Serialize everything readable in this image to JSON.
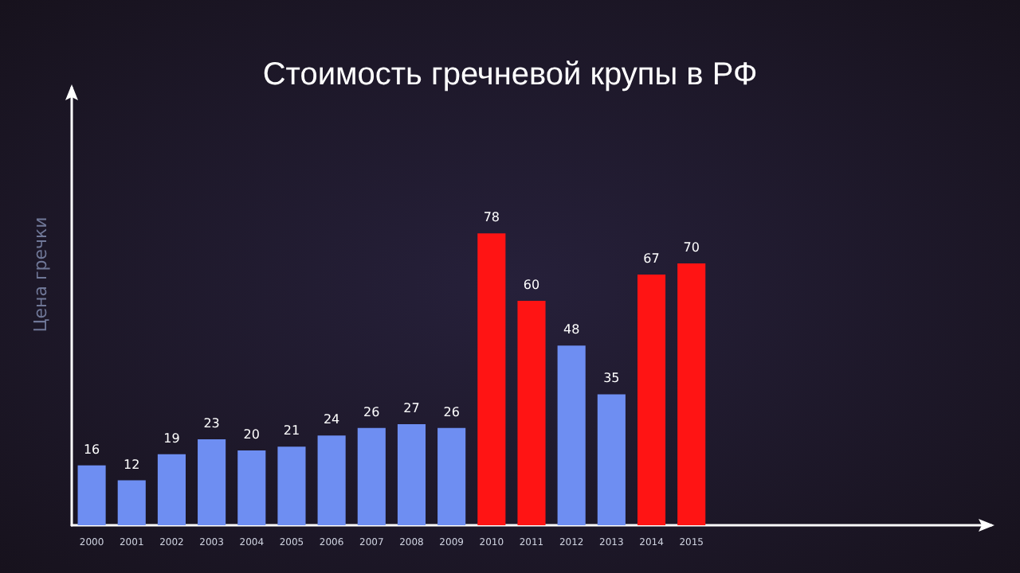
{
  "chart_data": {
    "type": "bar",
    "title": "Стоимость гречневой крупы в РФ",
    "ylabel": "Цена гречки",
    "categories": [
      "2000",
      "2001",
      "2002",
      "2003",
      "2004",
      "2005",
      "2006",
      "2007",
      "2008",
      "2009",
      "2010",
      "2011",
      "2012",
      "2013",
      "2014",
      "2015"
    ],
    "values": [
      16,
      12,
      19,
      23,
      20,
      21,
      24,
      26,
      27,
      26,
      78,
      60,
      48,
      35,
      67,
      70
    ],
    "colors": [
      "#6e8ef2",
      "#6e8ef2",
      "#6e8ef2",
      "#6e8ef2",
      "#6e8ef2",
      "#6e8ef2",
      "#6e8ef2",
      "#6e8ef2",
      "#6e8ef2",
      "#6e8ef2",
      "#ff1414",
      "#ff1414",
      "#6e8ef2",
      "#6e8ef2",
      "#ff1414",
      "#ff1414"
    ],
    "data_labels": true,
    "grid": false
  }
}
